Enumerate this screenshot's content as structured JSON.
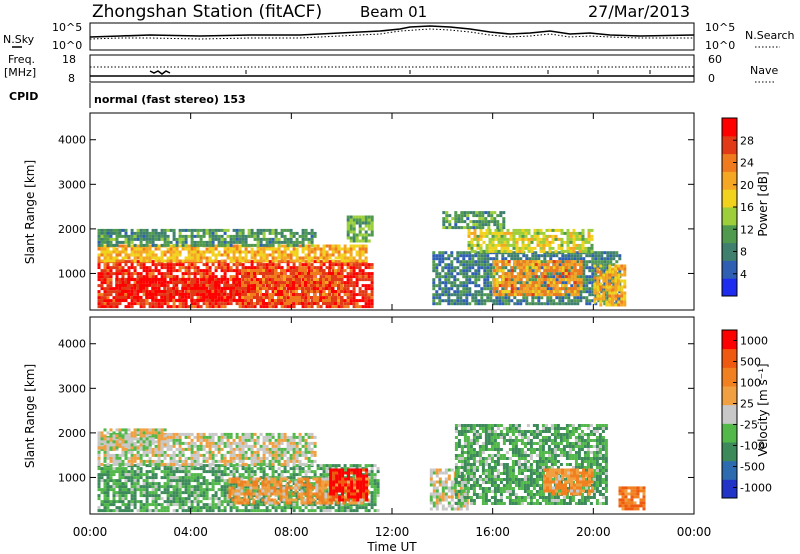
{
  "header": {
    "station_title": "Zhongshan Station (fitACF)",
    "beam_label": "Beam 01",
    "date_label": "27/Mar/2013"
  },
  "params": {
    "nsky_label": "N.Sky",
    "nsky_ticks": [
      "10^5",
      "10^0"
    ],
    "nsearch_label": "N.Search",
    "nsearch_ticks": [
      "10^5",
      "10^0"
    ],
    "freq_label_line1": "Freq.",
    "freq_label_line2": "[MHz]",
    "freq_ticks": [
      "18",
      "8"
    ],
    "nave_label": "Nave",
    "nave_ticks": [
      "60",
      "0"
    ],
    "cpid_label": "CPID",
    "cpid_text": "normal (fast stereo) 153"
  },
  "axes": {
    "ylabel": "Slant Range [km]",
    "xlabel": "Time UT",
    "yticks": [
      "1000",
      "2000",
      "3000",
      "4000"
    ],
    "xticks": [
      "00:00",
      "04:00",
      "08:00",
      "12:00",
      "16:00",
      "20:00",
      "00:00"
    ]
  },
  "colorbars": {
    "power": {
      "label": "Power [dB]",
      "ticks": [
        "4",
        "8",
        "12",
        "16",
        "20",
        "24",
        "28"
      ]
    },
    "velocity": {
      "label": "Velocity [m s⁻¹]",
      "ticks": [
        "1000",
        "500",
        "100",
        "25",
        "-25",
        "-100",
        "-500",
        "-1000"
      ]
    }
  },
  "colors": {
    "power_scale": [
      "#1e2cf0",
      "#2f5fb3",
      "#3e7f6e",
      "#4f9a4e",
      "#9ccf3a",
      "#f1d21c",
      "#f5a623",
      "#f07a1e",
      "#e23a16",
      "#ff0000"
    ],
    "velocity_scale": [
      "#2233c8",
      "#2d6bb0",
      "#3c8a5a",
      "#52b84a",
      "#c8c8c8",
      "#f0a040",
      "#f08020",
      "#f05a10",
      "#ff0000"
    ]
  },
  "chart_data": [
    {
      "type": "heatmap",
      "panel": "power",
      "xlabel": "Time UT",
      "ylabel": "Slant Range [km]",
      "xlim_hours": [
        0,
        24
      ],
      "ylim_km": [
        180,
        4600
      ],
      "zlabel": "Power [dB]",
      "zlim": [
        0,
        32
      ],
      "patches": [
        {
          "t0": 0.3,
          "t1": 11.2,
          "r0": 250,
          "r1": 1300,
          "z": 28
        },
        {
          "t0": 0.3,
          "t1": 11.0,
          "r0": 1300,
          "r1": 1650,
          "z": 20
        },
        {
          "t0": 0.3,
          "t1": 9.0,
          "r0": 1650,
          "r1": 2000,
          "z": 10
        },
        {
          "t0": 1.0,
          "t1": 6.0,
          "r0": 400,
          "r1": 900,
          "z": 30
        },
        {
          "t0": 6.0,
          "t1": 10.0,
          "r0": 300,
          "r1": 1100,
          "z": 26
        },
        {
          "t0": 10.2,
          "t1": 11.2,
          "r0": 1700,
          "r1": 2300,
          "z": 12
        },
        {
          "t0": 13.6,
          "t1": 21.0,
          "r0": 300,
          "r1": 1500,
          "z": 8
        },
        {
          "t0": 15.0,
          "t1": 20.0,
          "r0": 1500,
          "r1": 2000,
          "z": 16
        },
        {
          "t0": 16.0,
          "t1": 19.5,
          "r0": 500,
          "r1": 1300,
          "z": 22
        },
        {
          "t0": 20.0,
          "t1": 21.3,
          "r0": 300,
          "r1": 1200,
          "z": 20
        },
        {
          "t0": 14.0,
          "t1": 16.5,
          "r0": 2000,
          "r1": 2400,
          "z": 10
        }
      ]
    },
    {
      "type": "heatmap",
      "panel": "velocity",
      "xlabel": "Time UT",
      "ylabel": "Slant Range [km]",
      "xlim_hours": [
        0,
        24
      ],
      "ylim_km": [
        180,
        4600
      ],
      "zlabel": "Velocity [m s⁻¹]",
      "zlim": [
        -1000,
        1000
      ],
      "patches": [
        {
          "t0": 0.3,
          "t1": 11.5,
          "r0": 250,
          "r1": 1300,
          "z": -300
        },
        {
          "t0": 0.3,
          "t1": 9.0,
          "r0": 1300,
          "r1": 2000,
          "z": 0
        },
        {
          "t0": 0.3,
          "t1": 3.0,
          "r0": 1650,
          "r1": 2100,
          "z": 0
        },
        {
          "t0": 5.5,
          "t1": 11.0,
          "r0": 400,
          "r1": 1000,
          "z": 300
        },
        {
          "t0": 9.5,
          "t1": 11.0,
          "r0": 500,
          "r1": 1200,
          "z": 900
        },
        {
          "t0": 13.5,
          "t1": 15.0,
          "r0": 300,
          "r1": 1200,
          "z": 0
        },
        {
          "t0": 14.5,
          "t1": 20.5,
          "r0": 400,
          "r1": 2200,
          "z": -300
        },
        {
          "t0": 18.0,
          "t1": 20.0,
          "r0": 600,
          "r1": 1200,
          "z": 300
        },
        {
          "t0": 21.0,
          "t1": 22.0,
          "r0": 300,
          "r1": 800,
          "z": 500
        }
      ]
    }
  ]
}
